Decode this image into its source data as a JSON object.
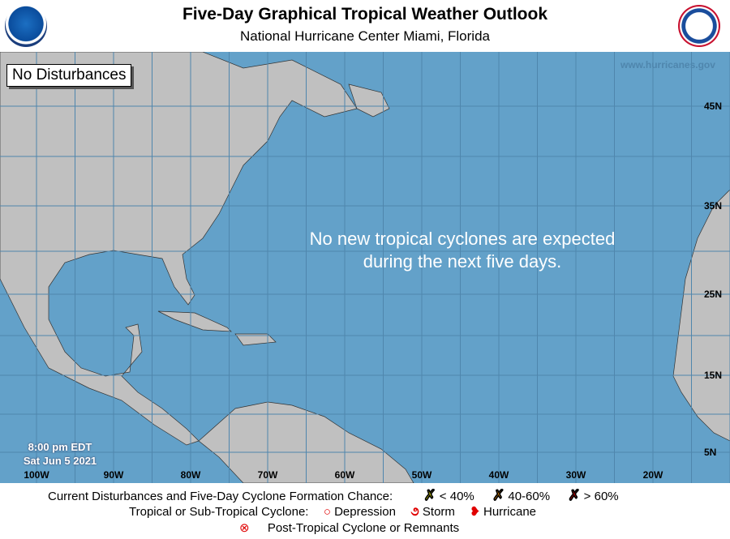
{
  "header": {
    "title": "Five-Day Graphical Tropical Weather Outlook",
    "subtitle": "National Hurricane Center  Miami, Florida",
    "logos": [
      "NOAA",
      "National Weather Service"
    ]
  },
  "map": {
    "status": "No Disturbances",
    "watermark": "www.hurricanes.gov",
    "message_line1": "No new tropical cyclones are expected",
    "message_line2": "during the next five days.",
    "time": "8:00 pm EDT",
    "date": "Sat Jun 5 2021",
    "lon_labels": [
      "100W",
      "90W",
      "80W",
      "70W",
      "60W",
      "50W",
      "40W",
      "30W",
      "20W"
    ],
    "lat_labels": [
      "45N",
      "35N",
      "25N",
      "15N",
      "5N"
    ],
    "colors": {
      "ocean": "#63a1c9",
      "land": "#c0c0c0",
      "grid": "#4f86ad"
    }
  },
  "legend": {
    "row1_label": "Current Disturbances and Five-Day Cyclone Formation Chance:",
    "low": "< 40%",
    "medium": "40-60%",
    "high": "> 60%",
    "row2_label": "Tropical or Sub-Tropical Cyclone:",
    "depression": "Depression",
    "storm": "Storm",
    "hurricane": "Hurricane",
    "post_tropical": "Post-Tropical Cyclone or Remnants",
    "colors": {
      "low": "#ffff00",
      "medium": "#ff9900",
      "high": "#ff0000",
      "cyclone": "#e00000"
    }
  }
}
